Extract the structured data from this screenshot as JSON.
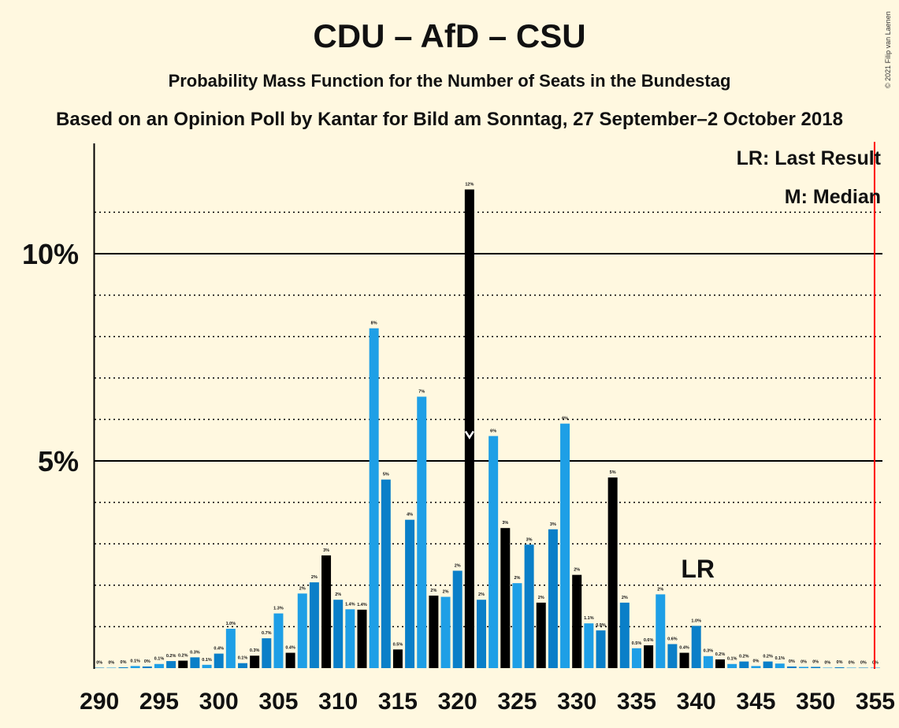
{
  "title": "CDU – AfD – CSU",
  "subtitle": "Probability Mass Function for the Number of Seats in the Bundestag",
  "subtitle2": "Based on an Opinion Poll by Kantar for Bild am Sonntag, 27 September–2 October 2018",
  "copyright": "© 2021 Filip van Laenen",
  "legend": {
    "lr": "LR: Last Result",
    "median": "M: Median"
  },
  "lr_marker": "LR",
  "colors": {
    "background": "#FFF8E0",
    "bar_light": "#1E9FE6",
    "bar_dark": "#0A7FC8",
    "bar_black": "#000000",
    "majority_line": "#FF0000"
  },
  "chart_data": {
    "type": "bar",
    "xlabel": "",
    "ylabel": "",
    "x_ticks": [
      "290",
      "295",
      "300",
      "305",
      "310",
      "315",
      "320",
      "325",
      "330",
      "335",
      "340",
      "345",
      "350",
      "355"
    ],
    "y_ticks": [
      "5%",
      "10%"
    ],
    "ylim": [
      0,
      12.5
    ],
    "median": 321,
    "last_result": 340,
    "majority": 355,
    "x": [
      290,
      291,
      292,
      293,
      294,
      295,
      296,
      297,
      298,
      299,
      300,
      301,
      302,
      303,
      304,
      305,
      306,
      307,
      308,
      309,
      310,
      311,
      312,
      313,
      314,
      315,
      316,
      317,
      318,
      319,
      320,
      321,
      322,
      323,
      324,
      325,
      326,
      327,
      328,
      329,
      330,
      331,
      332,
      333,
      334,
      335,
      336,
      337,
      338,
      339,
      340,
      341,
      342,
      343,
      344,
      345,
      346,
      347,
      348,
      349,
      350,
      351,
      352,
      353,
      354,
      355
    ],
    "values": [
      0.01,
      0.01,
      0.02,
      0.05,
      0.04,
      0.1,
      0.17,
      0.18,
      0.26,
      0.08,
      0.35,
      0.95,
      0.12,
      0.3,
      0.72,
      1.32,
      0.37,
      1.8,
      2.07,
      2.72,
      1.65,
      1.42,
      1.41,
      8.2,
      4.55,
      0.45,
      3.58,
      6.55,
      1.75,
      1.72,
      2.35,
      11.55,
      1.65,
      5.6,
      3.38,
      2.05,
      2.98,
      1.58,
      3.35,
      5.9,
      2.25,
      1.08,
      0.91,
      4.6,
      1.58,
      0.48,
      0.55,
      1.78,
      0.58,
      0.37,
      1.02,
      0.29,
      0.21,
      0.1,
      0.16,
      0.05,
      0.16,
      0.11,
      0.04,
      0.03,
      0.03,
      0.01,
      0.02,
      0.01,
      0.01,
      0.01
    ],
    "labels": [
      "0%",
      "0%",
      "0%",
      "0.1%",
      "0%",
      "0.1%",
      "0.2%",
      "0.2%",
      "0.3%",
      "0.1%",
      "0.4%",
      "1.0%",
      "0.1%",
      "0.3%",
      "0.7%",
      "1.3%",
      "0.4%",
      "2%",
      "2%",
      "3%",
      "2%",
      "1.4%",
      "1.4%",
      "8%",
      "5%",
      "0.5%",
      "4%",
      "7%",
      "2%",
      "2%",
      "2%",
      "12%",
      "2%",
      "6%",
      "3%",
      "2%",
      "3%",
      "2%",
      "3%",
      "6%",
      "2%",
      "1.1%",
      "0.9%",
      "5%",
      "2%",
      "0.5%",
      "0.6%",
      "2%",
      "0.6%",
      "0.4%",
      "1.0%",
      "0.3%",
      "0.2%",
      "0.1%",
      "0.2%",
      "0%",
      "0.2%",
      "0.1%",
      "0%",
      "0%",
      "0%",
      "0%",
      "0%",
      "0%",
      "0%",
      "0%"
    ]
  }
}
